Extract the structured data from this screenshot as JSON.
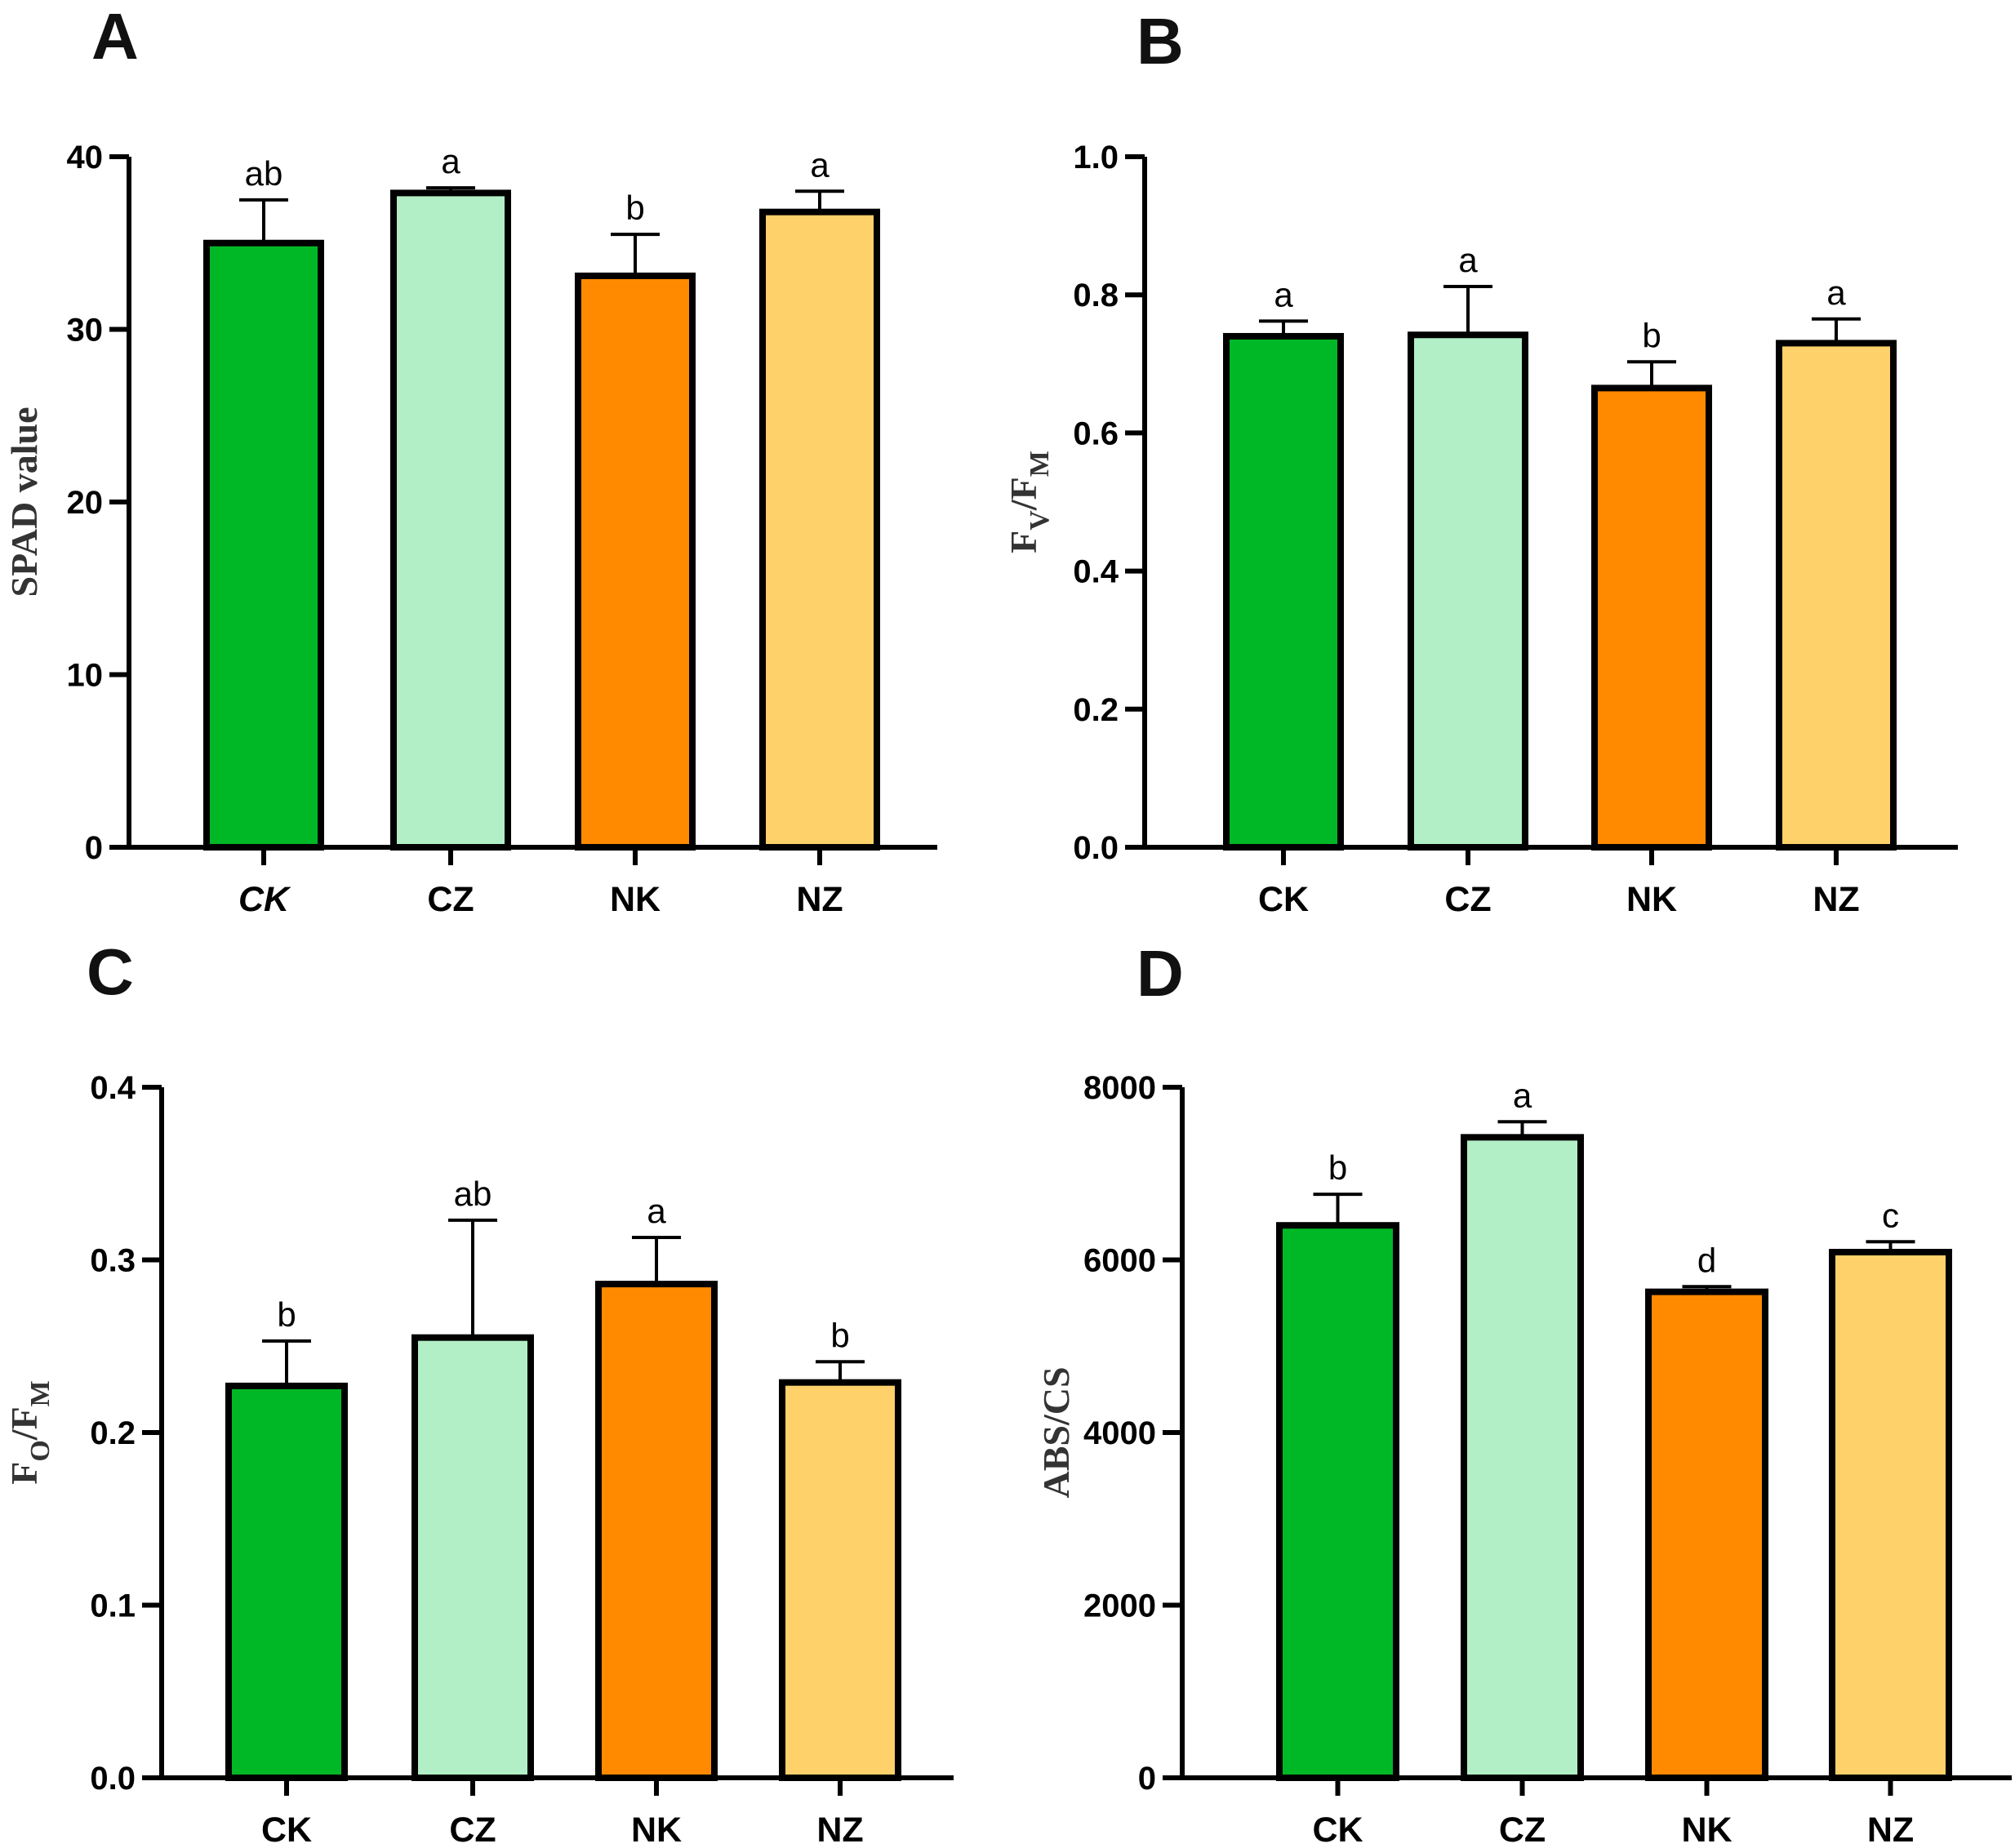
{
  "figure": {
    "panels": [
      "A",
      "B",
      "C",
      "D"
    ]
  },
  "chart_data": [
    {
      "panel": "A",
      "type": "bar",
      "categories": [
        "CK",
        "CZ",
        "NK",
        "NZ"
      ],
      "italic_categories": [
        "CK"
      ],
      "values": [
        35.0,
        37.9,
        33.1,
        36.8
      ],
      "errors": [
        2.5,
        0.3,
        2.4,
        1.2
      ],
      "significance": [
        "ab",
        "a",
        "b",
        "a"
      ],
      "colors": [
        "#00b826",
        "#b2efc6",
        "#ff8a00",
        "#fed16a"
      ],
      "ylabel": {
        "main": "SPAD value",
        "parts": [
          {
            "text": "SPAD value",
            "sub": false
          }
        ]
      },
      "ylim": [
        0,
        40
      ],
      "yticks": [
        0,
        10,
        20,
        30,
        40
      ],
      "ytick_labels": [
        "0",
        "10",
        "20",
        "30",
        "40"
      ],
      "grid": false,
      "legend": "none"
    },
    {
      "panel": "B",
      "type": "bar",
      "categories": [
        "CK",
        "CZ",
        "NK",
        "NZ"
      ],
      "italic_categories": [],
      "values": [
        0.74,
        0.742,
        0.665,
        0.73
      ],
      "errors": [
        0.022,
        0.07,
        0.038,
        0.035
      ],
      "significance": [
        "a",
        "a",
        "b",
        "a"
      ],
      "colors": [
        "#00b826",
        "#b2efc6",
        "#ff8a00",
        "#fed16a"
      ],
      "ylabel": {
        "parts": [
          {
            "text": "F",
            "sub": false
          },
          {
            "text": "V",
            "sub": true
          },
          {
            "text": "/F",
            "sub": false
          },
          {
            "text": "M",
            "sub": true
          }
        ]
      },
      "ylim": [
        0,
        1.0
      ],
      "yticks": [
        0,
        0.2,
        0.4,
        0.6,
        0.8,
        1.0
      ],
      "ytick_labels": [
        "0.0",
        "0.2",
        "0.4",
        "0.6",
        "0.8",
        "1.0"
      ],
      "grid": false,
      "legend": "none"
    },
    {
      "panel": "C",
      "type": "bar",
      "categories": [
        "CK",
        "CZ",
        "NK",
        "NZ"
      ],
      "italic_categories": [],
      "values": [
        0.227,
        0.255,
        0.286,
        0.229
      ],
      "errors": [
        0.026,
        0.068,
        0.027,
        0.012
      ],
      "significance": [
        "b",
        "ab",
        "a",
        "b"
      ],
      "colors": [
        "#00b826",
        "#b2efc6",
        "#ff8a00",
        "#fed16a"
      ],
      "ylabel": {
        "parts": [
          {
            "text": "F",
            "sub": false
          },
          {
            "text": "O",
            "sub": true
          },
          {
            "text": "/F",
            "sub": false
          },
          {
            "text": "M",
            "sub": true
          }
        ]
      },
      "ylim": [
        0,
        0.4
      ],
      "yticks": [
        0,
        0.1,
        0.2,
        0.3,
        0.4
      ],
      "ytick_labels": [
        "0.0",
        "0.1",
        "0.2",
        "0.3",
        "0.4"
      ],
      "grid": false,
      "legend": "none"
    },
    {
      "panel": "D",
      "type": "bar",
      "categories": [
        "CK",
        "CZ",
        "NK",
        "NZ"
      ],
      "italic_categories": [],
      "values": [
        6400,
        7420,
        5630,
        6090
      ],
      "errors": [
        360,
        180,
        60,
        120
      ],
      "significance": [
        "b",
        "a",
        "d",
        "c"
      ],
      "colors": [
        "#00b826",
        "#b2efc6",
        "#ff8a00",
        "#fed16a"
      ],
      "ylabel": {
        "parts": [
          {
            "text": "ABS/CS",
            "sub": false
          }
        ]
      },
      "ylim": [
        0,
        8000
      ],
      "yticks": [
        0,
        2000,
        4000,
        6000,
        8000
      ],
      "ytick_labels": [
        "0",
        "2000",
        "4000",
        "6000",
        "8000"
      ],
      "grid": false,
      "legend": "none"
    }
  ]
}
